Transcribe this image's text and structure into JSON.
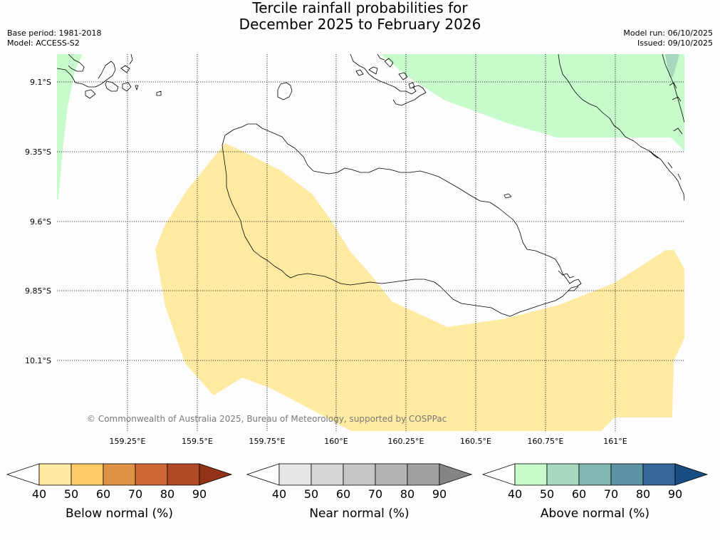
{
  "header": {
    "title_line1": "Tercile rainfall probabilities for",
    "title_line2": "December 2025 to February 2026",
    "base_period": "Base period: 1981-2018",
    "model": "Model: ACCESS-S2",
    "model_run": "Model run: 06/10/2025",
    "issued": "Issued: 09/10/2025"
  },
  "map": {
    "lat_labels": [
      "9.1°S",
      "9.35°S",
      "9.6°S",
      "9.85°S",
      "10.1°S"
    ],
    "lon_labels": [
      "159.25°E",
      "159.5°E",
      "159.75°E",
      "160°E",
      "160.25°E",
      "160.5°E",
      "160.75°E",
      "161°E"
    ],
    "copyright": "© Commonwealth of Australia 2025, Bureau of Meteorology, supported by COSPPac",
    "regions": [
      {
        "category": "Below normal",
        "probability_band": "40-50",
        "color": "#feeaa0"
      },
      {
        "category": "Above normal",
        "probability_band": "40-50",
        "color": "#c8fbcc"
      },
      {
        "category": "Above normal",
        "probability_band": "50-60",
        "color": "#a6d9bd"
      }
    ]
  },
  "colorbars": [
    {
      "title": "Below normal (%)",
      "ticks": [
        "40",
        "50",
        "60",
        "70",
        "80",
        "90"
      ],
      "colors": [
        "#ffffff",
        "#ffeaa0",
        "#fecb66",
        "#e09244",
        "#cd6535",
        "#b04a26",
        "#923217"
      ]
    },
    {
      "title": "Near normal (%)",
      "ticks": [
        "40",
        "50",
        "60",
        "70",
        "80",
        "90"
      ],
      "colors": [
        "#ffffff",
        "#e6e6e6",
        "#d6d6d6",
        "#c6c6c6",
        "#b4b4b4",
        "#a0a0a0",
        "#858585"
      ]
    },
    {
      "title": "Above normal (%)",
      "ticks": [
        "40",
        "50",
        "60",
        "70",
        "80",
        "90"
      ],
      "colors": [
        "#ffffff",
        "#c8fbcc",
        "#a6d9bd",
        "#82b6b0",
        "#5c93a3",
        "#346699",
        "#174d82"
      ]
    }
  ]
}
